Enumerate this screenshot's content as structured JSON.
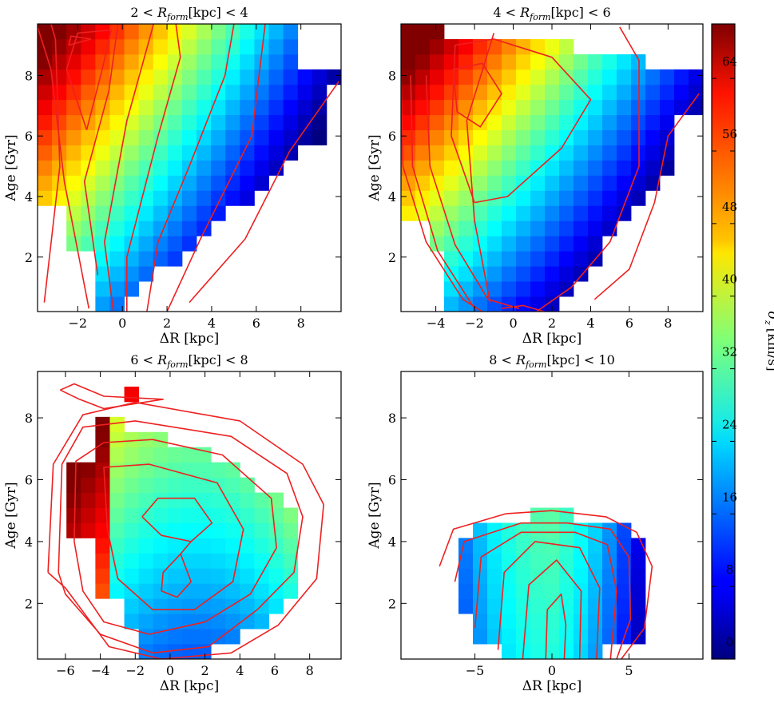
{
  "chart_data": [
    {
      "type": "heatmap",
      "title": "2 < R_form [kpc] < 4",
      "title_parts": {
        "lo": "2",
        "hi": "4",
        "var": "R",
        "sub": "form",
        "unit": "[kpc]"
      },
      "xlabel": "ΔR [kpc]",
      "ylabel": "Age [Gyr]",
      "xlim": [
        -3.8,
        9.8
      ],
      "ylim": [
        0.2,
        9.7
      ],
      "xticks": [
        -2,
        0,
        2,
        4,
        6,
        8
      ],
      "xtick_labels": [
        "−2",
        "0",
        "2",
        "4",
        "6",
        "8"
      ],
      "yticks": [
        2,
        4,
        6,
        8
      ],
      "ytick_labels": [
        "2",
        "4",
        "6",
        "8"
      ],
      "colorbar_range": [
        0,
        70
      ]
    },
    {
      "type": "heatmap",
      "title": "4 < R_form [kpc] < 6",
      "title_parts": {
        "lo": "4",
        "hi": "6",
        "var": "R",
        "sub": "form",
        "unit": "[kpc]"
      },
      "xlabel": "ΔR [kpc]",
      "ylabel": "Age [Gyr]",
      "xlim": [
        -5.8,
        9.8
      ],
      "ylim": [
        0.2,
        9.7
      ],
      "xticks": [
        -4,
        -2,
        0,
        2,
        4,
        6,
        8
      ],
      "xtick_labels": [
        "−4",
        "−2",
        "0",
        "2",
        "4",
        "6",
        "8"
      ],
      "yticks": [
        2,
        4,
        6,
        8
      ],
      "ytick_labels": [
        "2",
        "4",
        "6",
        "8"
      ],
      "colorbar_range": [
        0,
        70
      ]
    },
    {
      "type": "heatmap",
      "title": "6 < R_form [kpc] < 8",
      "title_parts": {
        "lo": "6",
        "hi": "8",
        "var": "R",
        "sub": "form",
        "unit": "[kpc]"
      },
      "xlabel": "ΔR [kpc]",
      "ylabel": "Age [Gyr]",
      "xlim": [
        -7.6,
        9.8
      ],
      "ylim": [
        0.2,
        9.5
      ],
      "xticks": [
        -6,
        -4,
        -2,
        0,
        2,
        4,
        6,
        8
      ],
      "xtick_labels": [
        "−6",
        "−4",
        "−2",
        "0",
        "2",
        "4",
        "6",
        "8"
      ],
      "yticks": [
        2,
        4,
        6,
        8
      ],
      "ytick_labels": [
        "2",
        "4",
        "6",
        "8"
      ],
      "colorbar_range": [
        0,
        70
      ]
    },
    {
      "type": "heatmap",
      "title": "8 < R_form [kpc] < 10",
      "title_parts": {
        "lo": "8",
        "hi": "10",
        "var": "R",
        "sub": "form",
        "unit": "[kpc]"
      },
      "xlabel": "ΔR [kpc]",
      "ylabel": "Age [Gyr]",
      "xlim": [
        -9.8,
        9.8
      ],
      "ylim": [
        0.2,
        9.5
      ],
      "xticks": [
        -5,
        0,
        5
      ],
      "xtick_labels": [
        "−5",
        "0",
        "5"
      ],
      "yticks": [
        2,
        4,
        6,
        8
      ],
      "ytick_labels": [
        "2",
        "4",
        "6",
        "8"
      ],
      "colorbar_range": [
        0,
        70
      ]
    }
  ],
  "colorbar": {
    "label": "σ_z [km/s]",
    "label_symbol": "σ",
    "label_sub": "z",
    "label_unit": "[km/s]",
    "min": 0,
    "max": 70,
    "ticks": [
      0,
      8,
      16,
      24,
      32,
      40,
      48,
      56,
      64
    ],
    "tick_labels": [
      "0",
      "8",
      "16",
      "24",
      "32",
      "40",
      "48",
      "56",
      "64"
    ],
    "colormap": "jet"
  },
  "colors": {
    "contour": "#ee2020"
  }
}
